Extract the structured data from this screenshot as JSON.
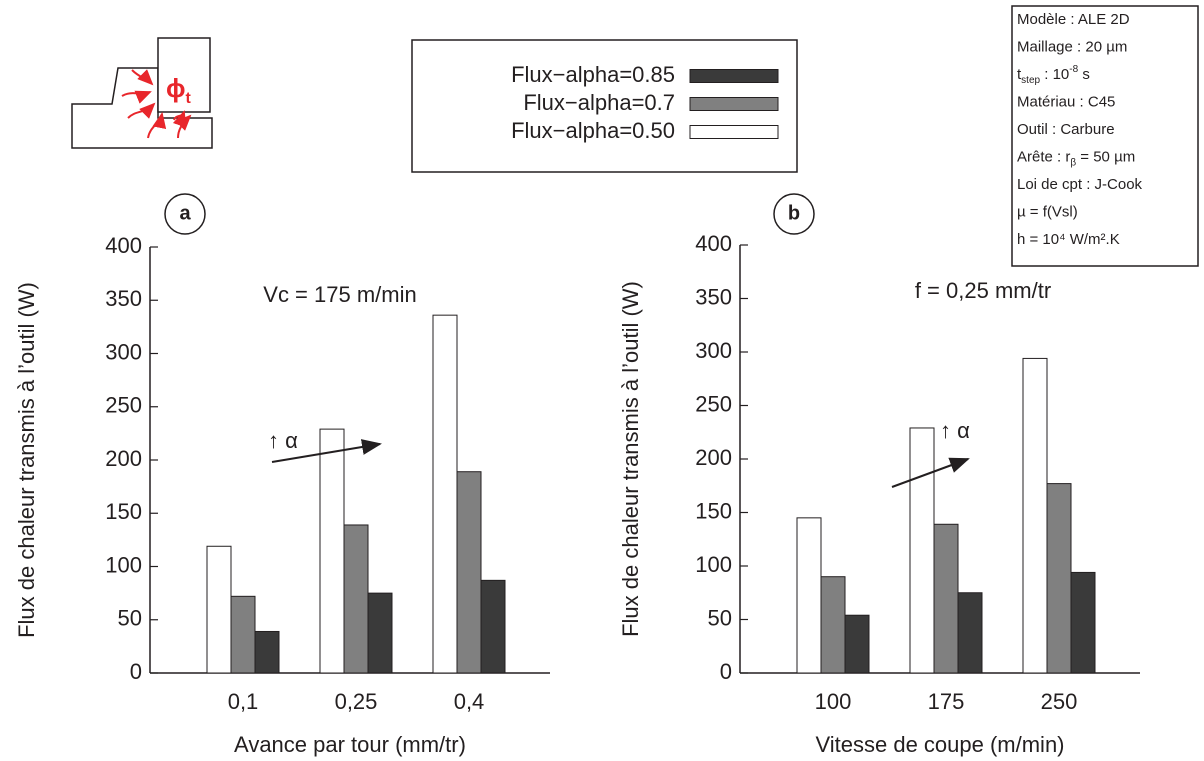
{
  "chart_data": [
    {
      "type": "bar",
      "panel_label": "a",
      "annotations": [
        "Vc = 175 m/min",
        "↑ α"
      ],
      "categories": [
        "0,1",
        "0,25",
        "0,4"
      ],
      "xlabel": "Avance par tour (mm/tr)",
      "ylabel": "Flux de chaleur transmis à l’outil (W)",
      "ylim": [
        0,
        400
      ],
      "yticks": [
        0,
        50,
        100,
        150,
        200,
        250,
        300,
        350,
        400
      ],
      "series": [
        {
          "name": "Flux−alpha=0.85",
          "color": "#3a3a3a",
          "values": [
            39,
            75,
            87
          ]
        },
        {
          "name": "Flux−alpha=0.7",
          "color": "#808080",
          "values": [
            72,
            139,
            189
          ]
        },
        {
          "name": "Flux−alpha=0.50",
          "color": "#ffffff",
          "values": [
            119,
            229,
            336
          ]
        }
      ]
    },
    {
      "type": "bar",
      "panel_label": "b",
      "annotations": [
        "f = 0,25 mm/tr",
        "↑ α"
      ],
      "categories": [
        "100",
        "175",
        "250"
      ],
      "xlabel": "Vitesse de coupe (m/min)",
      "ylabel": "Flux de chaleur transmis à l’outil (W)",
      "ylim": [
        0,
        400
      ],
      "yticks": [
        0,
        50,
        100,
        150,
        200,
        250,
        300,
        350,
        400
      ],
      "series": [
        {
          "color": "#3a3a3a",
          "values": [
            54,
            75,
            94
          ]
        },
        {
          "color": "#808080",
          "values": [
            90,
            139,
            177
          ]
        },
        {
          "color": "#ffffff",
          "values": [
            145,
            229,
            294
          ]
        }
      ]
    }
  ],
  "diagram_label": {
    "main": "ϕ",
    "sub": "t"
  },
  "info_box": [
    [
      {
        "text": "Modèle : ALE 2D"
      }
    ],
    [
      {
        "text": "Maillage : 20 µm"
      }
    ],
    [
      {
        "text": "t"
      },
      {
        "text": "step",
        "shift": "sub"
      },
      {
        "text": " : 10"
      },
      {
        "text": "-8",
        "shift": "super"
      },
      {
        "text": " s"
      }
    ],
    [
      {
        "text": "Matériau : C45"
      }
    ],
    [
      {
        "text": "Outil : Carbure"
      }
    ],
    [
      {
        "text": "Arête : r"
      },
      {
        "text": "β",
        "shift": "sub"
      },
      {
        "text": " = 50 µm"
      }
    ],
    [
      {
        "text": "Loi de cpt : J-Cook"
      }
    ],
    [
      {
        "text": "µ = f(Vsl)"
      }
    ],
    [
      {
        "text": "h = 10⁴ W/m².K"
      }
    ]
  ]
}
